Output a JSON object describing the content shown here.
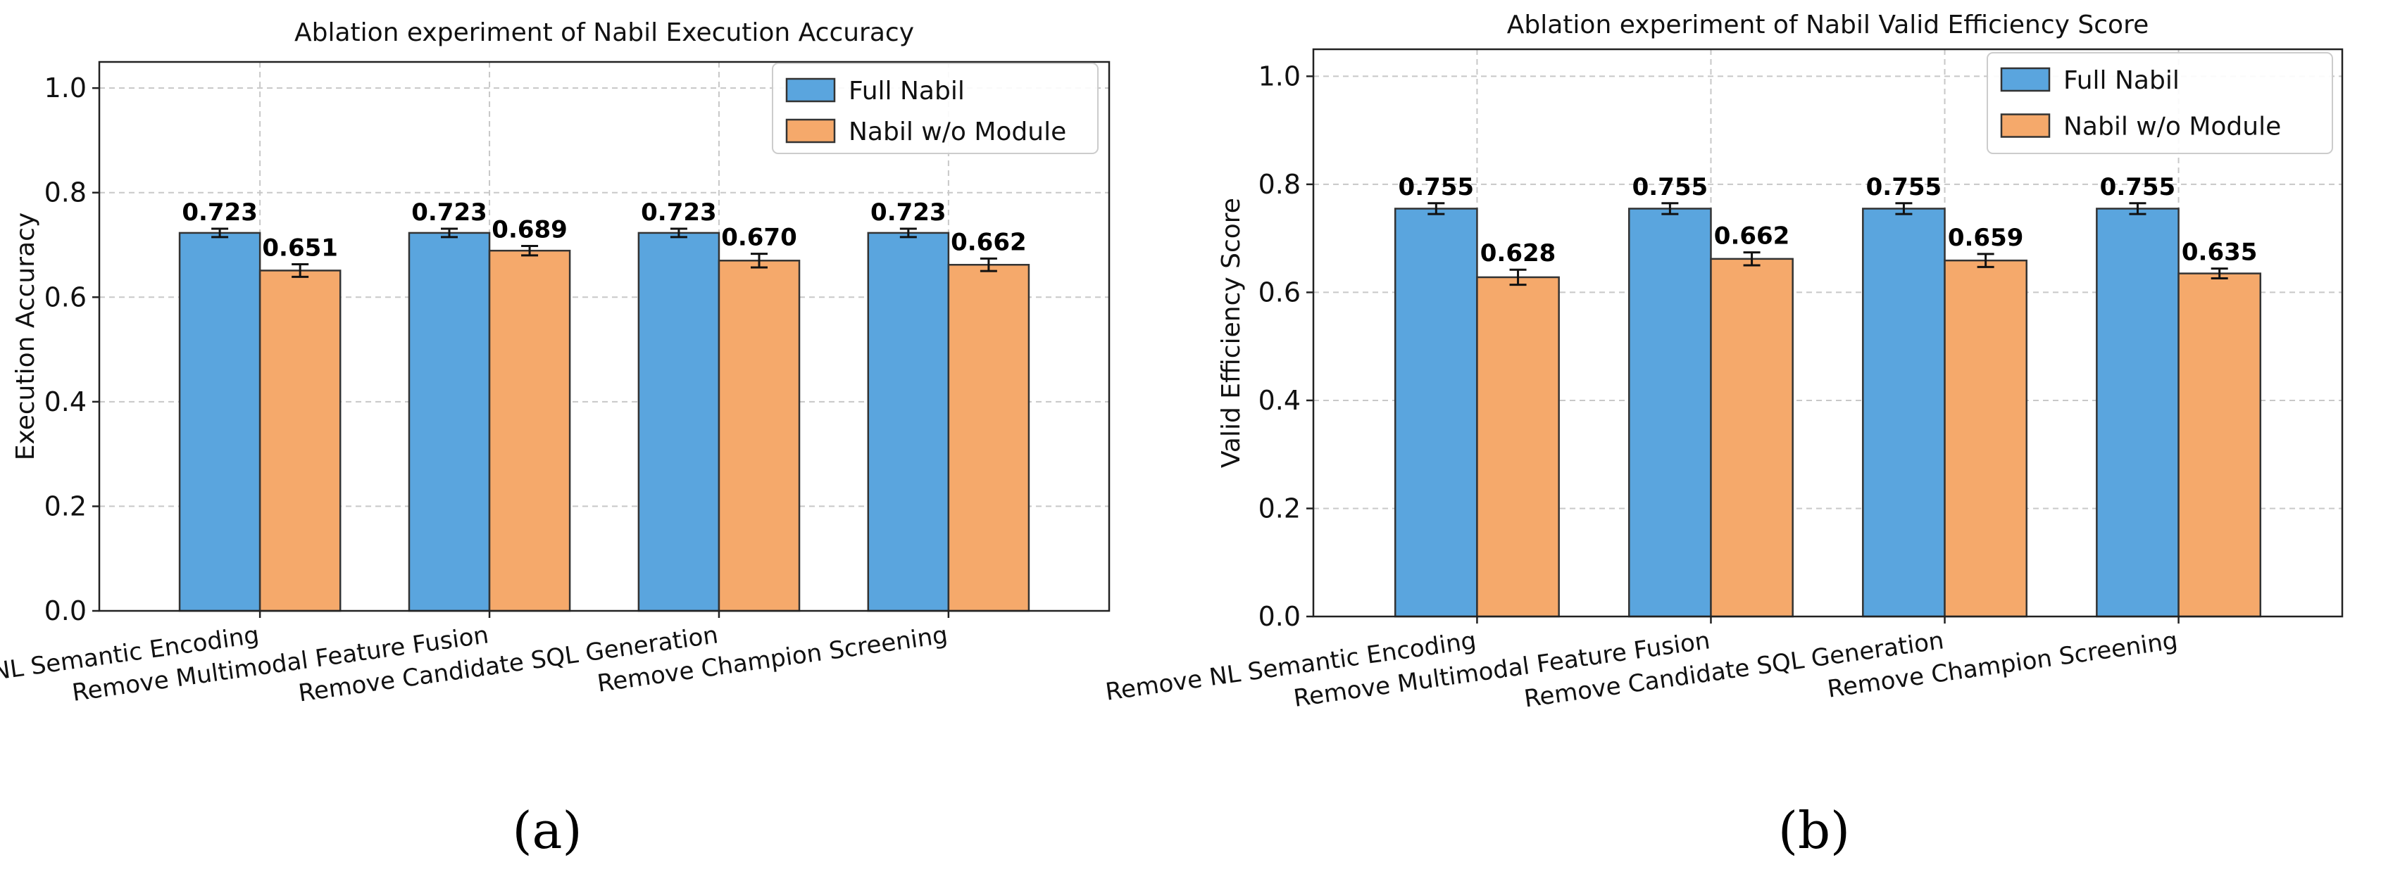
{
  "colors": {
    "full": "#5aa5de",
    "without": "#f5a96b",
    "edge": "#333333",
    "grid": "#c8c8c8"
  },
  "chart_data": [
    {
      "type": "bar",
      "title": "Ablation experiment of Nabil Execution Accuracy",
      "xlabel": "",
      "ylabel": "Execution Accuracy",
      "ylim": [
        0,
        1.05
      ],
      "yticks": [
        0.0,
        0.2,
        0.4,
        0.6,
        0.8,
        1.0
      ],
      "ytick_labels": [
        "0.0",
        "0.2",
        "0.4",
        "0.6",
        "0.8",
        "1.0"
      ],
      "grid": true,
      "legend_position": "top-right",
      "panel_label": "(a)",
      "categories": [
        "Remove NL Semantic Encoding",
        "Remove Multimodal Feature Fusion",
        "Remove Candidate SQL Generation",
        "Remove Champion Screening"
      ],
      "series": [
        {
          "name": "Full Nabil",
          "values": [
            0.723,
            0.723,
            0.723,
            0.723
          ],
          "labels": [
            "0.723",
            "0.723",
            "0.723",
            "0.723"
          ],
          "errors": [
            0.008,
            0.008,
            0.008,
            0.008
          ]
        },
        {
          "name": "Nabil w/o Module",
          "values": [
            0.651,
            0.689,
            0.67,
            0.662
          ],
          "labels": [
            "0.651",
            "0.689",
            "0.670",
            "0.662"
          ],
          "errors": [
            0.012,
            0.009,
            0.013,
            0.012
          ]
        }
      ]
    },
    {
      "type": "bar",
      "title": "Ablation experiment of Nabil Valid Efficiency Score",
      "xlabel": "",
      "ylabel": "Valid Efficiency Score",
      "ylim": [
        0,
        1.05
      ],
      "yticks": [
        0.0,
        0.2,
        0.4,
        0.6,
        0.8,
        1.0
      ],
      "ytick_labels": [
        "0.0",
        "0.2",
        "0.4",
        "0.6",
        "0.8",
        "1.0"
      ],
      "grid": true,
      "legend_position": "top-right",
      "panel_label": "(b)",
      "categories": [
        "Remove NL Semantic Encoding",
        "Remove Multimodal Feature Fusion",
        "Remove Candidate SQL Generation",
        "Remove Champion Screening"
      ],
      "series": [
        {
          "name": "Full Nabil",
          "values": [
            0.755,
            0.755,
            0.755,
            0.755
          ],
          "labels": [
            "0.755",
            "0.755",
            "0.755",
            "0.755"
          ],
          "errors": [
            0.01,
            0.01,
            0.01,
            0.01
          ]
        },
        {
          "name": "Nabil w/o Module",
          "values": [
            0.628,
            0.662,
            0.659,
            0.635
          ],
          "labels": [
            "0.628",
            "0.662",
            "0.659",
            "0.635"
          ],
          "errors": [
            0.014,
            0.012,
            0.012,
            0.009
          ]
        }
      ]
    }
  ]
}
